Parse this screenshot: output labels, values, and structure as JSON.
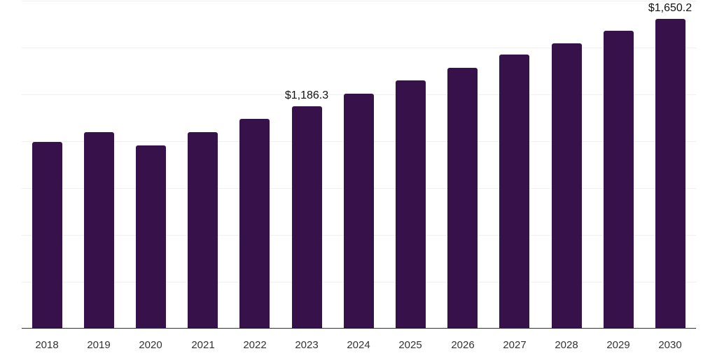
{
  "chart_data": {
    "type": "bar",
    "title": "",
    "xlabel": "",
    "ylabel": "",
    "categories": [
      "2018",
      "2019",
      "2020",
      "2021",
      "2022",
      "2023",
      "2024",
      "2025",
      "2026",
      "2027",
      "2028",
      "2029",
      "2030"
    ],
    "values": [
      996,
      1048,
      974,
      1048,
      1119,
      1186.3,
      1253,
      1324,
      1391,
      1459,
      1522,
      1589,
      1650.2
    ],
    "data_labels": [
      {
        "category": "2023",
        "text": "$1,186.3"
      },
      {
        "category": "2030",
        "text": "$1,650.2"
      }
    ],
    "ylim": [
      0,
      1750
    ],
    "grid": true,
    "gridline_step": 250,
    "legend": null,
    "bar_color": "#37124a"
  }
}
